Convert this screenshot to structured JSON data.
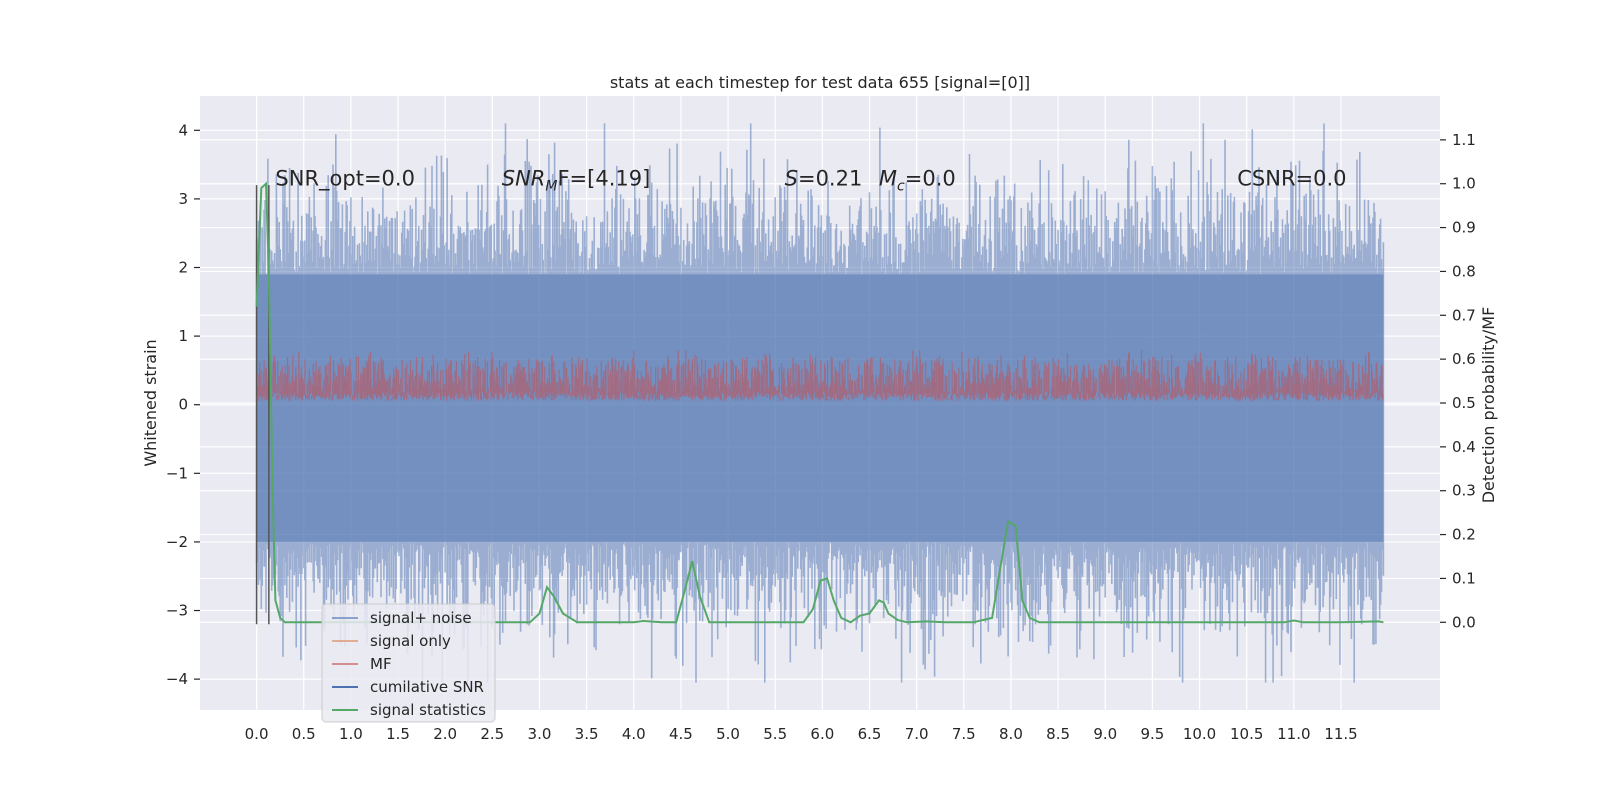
{
  "chart_data": {
    "type": "line",
    "title": "stats at each timestep for test data 655 [signal=[0]]",
    "xlabel": "",
    "ylabel": "Whitened strain",
    "y2label": "Detection probability/MF",
    "xlim": [
      -0.6,
      12.55
    ],
    "ylim": [
      -4.45,
      4.5
    ],
    "y2lim": [
      -0.2,
      1.2
    ],
    "grid": true,
    "x_ticks": [
      0.0,
      0.5,
      1.0,
      1.5,
      2.0,
      2.5,
      3.0,
      3.5,
      4.0,
      4.5,
      5.0,
      5.5,
      6.0,
      6.5,
      7.0,
      7.5,
      8.0,
      8.5,
      9.0,
      9.5,
      10.0,
      10.5,
      11.0,
      11.5
    ],
    "x_tick_labels": [
      "0.0",
      "0.5",
      "1.0",
      "1.5",
      "2.0",
      "2.5",
      "3.0",
      "3.5",
      "4.0",
      "4.5",
      "5.0",
      "5.5",
      "6.0",
      "6.5",
      "7.0",
      "7.5",
      "8.0",
      "8.5",
      "9.0",
      "9.5",
      "10.0",
      "10.5",
      "11.0",
      "11.5"
    ],
    "y_ticks": [
      4,
      3,
      2,
      1,
      0,
      -1,
      -2,
      -3,
      -4
    ],
    "y_tick_labels": [
      "4",
      "3",
      "2",
      "1",
      "0",
      "−1",
      "−2",
      "−3",
      "−4"
    ],
    "y2_ticks": [
      1.1,
      1.0,
      0.9,
      0.8,
      0.7,
      0.6,
      0.5,
      0.4,
      0.3,
      0.2,
      0.1,
      0.0
    ],
    "y2_tick_labels": [
      "1.1",
      "1.0",
      "0.9",
      "0.8",
      "0.7",
      "0.6",
      "0.5",
      "0.4",
      "0.3",
      "0.2",
      "0.1",
      "0.0"
    ],
    "annotations": [
      {
        "text": "SNR_opt=0.0",
        "x": 0.2,
        "y": 3.3
      },
      {
        "text": "SNR_MF=[4.19]",
        "x": 2.6,
        "y": 3.3
      },
      {
        "text": "S=0.21",
        "x": 5.6,
        "y": 3.3
      },
      {
        "text": "M_c=0.0",
        "x": 6.6,
        "y": 3.3
      },
      {
        "text": "CSNR=0.0",
        "x": 10.4,
        "y": 3.3
      }
    ],
    "vertical_lines": [
      0.0,
      0.13
    ],
    "noise": {
      "x_range": [
        0.0,
        11.95
      ],
      "sample_step": 0.01,
      "envelope": [
        -2.0,
        1.9
      ],
      "extreme_range": [
        -4.05,
        4.1
      ]
    },
    "mf": {
      "x_range": [
        0.0,
        11.95
      ],
      "range": [
        0.5,
        0.6
      ],
      "axis": "right"
    },
    "series": [
      {
        "name": "signal+ noise",
        "color": "#4c72b0",
        "axis": "left"
      },
      {
        "name": "signal only",
        "color": "#dd8452",
        "axis": "left"
      },
      {
        "name": "MF",
        "color": "#c44e52",
        "axis": "right"
      },
      {
        "name": "cumilative SNR",
        "color": "#4c72b0",
        "axis": "right"
      },
      {
        "name": "signal statistics",
        "color": "#55a868",
        "axis": "right",
        "x": [
          0.0,
          0.05,
          0.1,
          0.13,
          0.17,
          0.2,
          0.25,
          0.3,
          0.5,
          1.0,
          2.0,
          2.9,
          3.0,
          3.08,
          3.15,
          3.25,
          3.4,
          3.6,
          4.0,
          4.1,
          4.3,
          4.45,
          4.55,
          4.62,
          4.7,
          4.8,
          5.0,
          5.5,
          5.8,
          5.9,
          5.98,
          6.05,
          6.12,
          6.2,
          6.3,
          6.4,
          6.5,
          6.6,
          6.65,
          6.7,
          6.8,
          6.9,
          7.1,
          7.3,
          7.6,
          7.8,
          7.9,
          7.97,
          8.05,
          8.12,
          8.2,
          8.3,
          8.6,
          9.0,
          10.0,
          10.9,
          11.0,
          11.1,
          11.5,
          11.9,
          11.95
        ],
        "y": [
          0.72,
          0.99,
          1.0,
          0.8,
          0.3,
          0.05,
          0.01,
          0.0,
          0.0,
          0.0,
          0.0,
          0.0,
          0.02,
          0.08,
          0.06,
          0.02,
          0.0,
          0.0,
          0.0,
          0.003,
          0.0,
          0.0,
          0.08,
          0.14,
          0.06,
          0.0,
          0.0,
          0.0,
          0.0,
          0.03,
          0.095,
          0.1,
          0.05,
          0.01,
          0.0,
          0.015,
          0.02,
          0.05,
          0.045,
          0.02,
          0.005,
          0.0,
          0.002,
          0.0,
          0.0,
          0.01,
          0.14,
          0.23,
          0.22,
          0.05,
          0.01,
          0.0,
          0.0,
          0.0,
          0.0,
          0.0,
          0.004,
          0.0,
          0.0,
          0.002,
          0.0
        ]
      }
    ]
  }
}
